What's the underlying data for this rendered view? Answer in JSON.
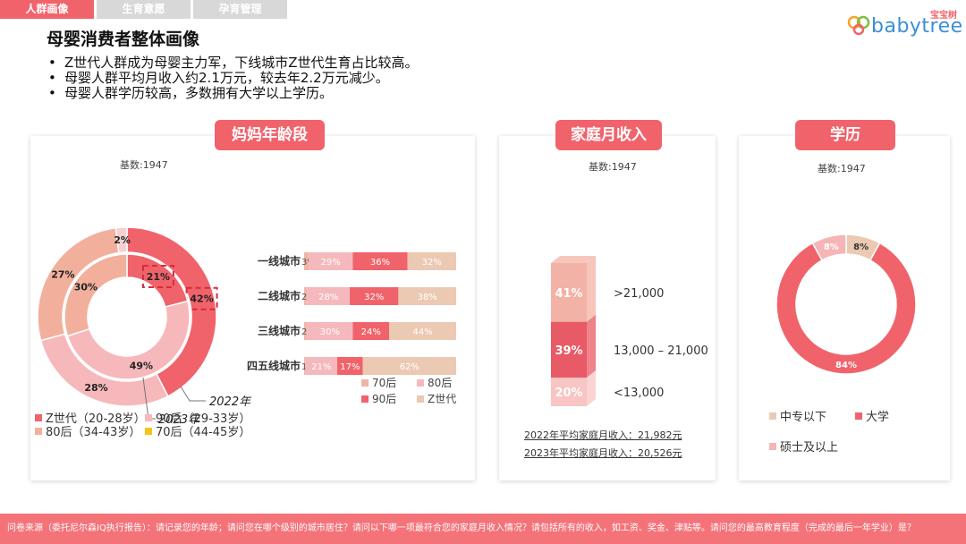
{
  "tabs": [
    "人群画像",
    "生育意愿",
    "孕育管理"
  ],
  "logo": {
    "cn": "宝宝树",
    "word": "babytree"
  },
  "title": "母婴消费者整体画像",
  "bullets": [
    "Z世代人群成为母婴主力军，下线城市Z世代生育占比较高。",
    "母婴人群平均月收入约2.1万元，较去年2.2万元减少。",
    "母婴人群学历较高，多数拥有大学以上学历。"
  ],
  "sections": {
    "age": "妈妈年龄段",
    "income": "家庭月收入",
    "edu": "学历"
  },
  "base_label": "基数:1947",
  "colors": {
    "z": "#f0636b",
    "g90": "#f7b8bb",
    "g80": "#f2b09c",
    "g70": "#f5c518",
    "cityZ": "#ecc9b3",
    "city70": "#efb6a8",
    "income_top": "#f3b2a6",
    "income_mid": "#e85a66",
    "income_low": "#f8c4c4",
    "edu_mid": "#ecc9b3",
    "edu_uni": "#f0636b",
    "edu_master": "#f5b5b5"
  },
  "chart_data": [
    {
      "type": "pie",
      "subtype": "nested-donut",
      "rings": [
        {
          "name": "2022年",
          "slices": [
            {
              "label": "Z世代（20-28岁）",
              "value": 42
            },
            {
              "label": "90后（29-33岁）",
              "value": 28
            },
            {
              "label": "80后（34-43岁）",
              "value": 27
            },
            {
              "label": "70后（44-45岁）",
              "value": 2
            }
          ]
        },
        {
          "name": "2023年",
          "slices": [
            {
              "label": "Z世代（20-28岁）",
              "value": 21
            },
            {
              "label": "90后（29-33岁）",
              "value": 49
            },
            {
              "label": "80后（34-43岁）",
              "value": 30
            },
            {
              "label": "70后（44-45岁）",
              "value": 0
            }
          ]
        }
      ],
      "legend": [
        "Z世代（20-28岁）",
        "90后（29-33岁）",
        "80后（34-43岁）",
        "70后（44-45岁）"
      ],
      "ring_labels": [
        "2022年",
        "2023年"
      ]
    },
    {
      "type": "bar",
      "subtype": "stacked-horizontal-100",
      "categories": [
        "一线城市",
        "二线城市",
        "三线城市",
        "四五线城市"
      ],
      "series": [
        {
          "name": "70后",
          "values": [
            3,
            2,
            2,
            1
          ]
        },
        {
          "name": "80后",
          "values": [
            29,
            28,
            30,
            21
          ]
        },
        {
          "name": "90后",
          "values": [
            36,
            32,
            24,
            17
          ]
        },
        {
          "name": "Z世代",
          "values": [
            32,
            38,
            44,
            62
          ]
        }
      ],
      "legend": [
        "70后",
        "80后",
        "90后",
        "Z世代"
      ]
    },
    {
      "type": "bar",
      "subtype": "stacked-vertical-100",
      "categories": [
        "家庭月收入"
      ],
      "series": [
        {
          "name": "<13,000",
          "values": [
            20
          ]
        },
        {
          "name": "13,000 – 21,000",
          "values": [
            39
          ]
        },
        {
          "name": ">21,000",
          "values": [
            41
          ]
        }
      ],
      "notes": [
        "2022年平均家庭月收入：21,982元",
        "2023年平均家庭月收入：20,526元"
      ]
    },
    {
      "type": "pie",
      "subtype": "donut",
      "slices": [
        {
          "label": "中专以下",
          "value": 8
        },
        {
          "label": "大学",
          "value": 84
        },
        {
          "label": "硕士及以上",
          "value": 8
        }
      ],
      "legend": [
        "中专以下",
        "大学",
        "硕士及以上"
      ]
    }
  ],
  "footer": "问卷来源（委托尼尔森IQ执行报告）：请记录您的年龄；请问您在哪个级别的城市居住？请问以下哪一项最符合您的家庭月收入情况？请包括所有的收入，如工资、奖金、津贴等。请问您的最高教育程度（完成的最后一年学业）是？"
}
